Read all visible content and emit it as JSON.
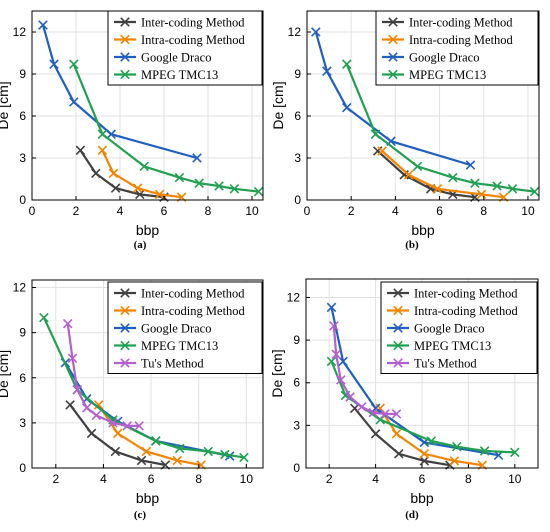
{
  "chart_data": [
    {
      "type": "line",
      "caption": "(a)",
      "xlabel": "bbp",
      "ylabel": "De [cm]",
      "xlim": [
        0,
        10.5
      ],
      "ylim": [
        0,
        13.5
      ],
      "xticks": [
        0,
        2,
        4,
        6,
        8,
        10
      ],
      "yticks": [
        0,
        3,
        6,
        9,
        12
      ],
      "grid": true,
      "legend": "top-right",
      "series": [
        {
          "name": "Inter-coding Method",
          "color": "#404040",
          "x": [
            2.2,
            2.9,
            3.8,
            4.9,
            6.0
          ],
          "y": [
            3.55,
            1.9,
            0.85,
            0.4,
            0.2
          ]
        },
        {
          "name": "Intra-coding Method",
          "color": "#f28500",
          "x": [
            3.2,
            3.7,
            4.8,
            5.8,
            6.8
          ],
          "y": [
            3.55,
            1.9,
            0.85,
            0.4,
            0.2
          ]
        },
        {
          "name": "Google Draco",
          "color": "#1f5fbf",
          "x": [
            0.5,
            1.0,
            1.9,
            3.6,
            7.5
          ],
          "y": [
            12.5,
            9.7,
            7.0,
            4.7,
            3.0
          ]
        },
        {
          "name": "MPEG TMC13",
          "color": "#20a050",
          "x": [
            1.9,
            3.2,
            5.1,
            6.7,
            7.6,
            8.5,
            9.2,
            10.3
          ],
          "y": [
            9.7,
            4.7,
            2.4,
            1.6,
            1.2,
            1.0,
            0.8,
            0.6
          ]
        }
      ]
    },
    {
      "type": "line",
      "caption": "(b)",
      "xlabel": "bbp",
      "ylabel": "De [cm]",
      "xlim": [
        0,
        10.5
      ],
      "ylim": [
        0,
        13.5
      ],
      "xticks": [
        0,
        2,
        4,
        6,
        8,
        10
      ],
      "yticks": [
        0,
        3,
        6,
        9,
        12
      ],
      "grid": true,
      "legend": "top-right",
      "series": [
        {
          "name": "Inter-coding Method",
          "color": "#404040",
          "x": [
            3.2,
            4.4,
            5.6,
            6.6,
            7.6
          ],
          "y": [
            3.5,
            1.8,
            0.8,
            0.4,
            0.2
          ]
        },
        {
          "name": "Intra-coding Method",
          "color": "#f28500",
          "x": [
            3.4,
            4.6,
            5.9,
            7.9,
            8.9
          ],
          "y": [
            3.5,
            1.8,
            0.8,
            0.4,
            0.2
          ]
        },
        {
          "name": "Google Draco",
          "color": "#1f5fbf",
          "x": [
            0.4,
            0.9,
            1.8,
            3.8,
            7.4
          ],
          "y": [
            12.0,
            9.2,
            6.6,
            4.2,
            2.5
          ]
        },
        {
          "name": "MPEG TMC13",
          "color": "#20a050",
          "x": [
            1.8,
            3.1,
            5.0,
            6.6,
            7.6,
            8.6,
            9.3,
            10.3
          ],
          "y": [
            9.7,
            4.7,
            2.4,
            1.6,
            1.2,
            1.0,
            0.8,
            0.6
          ]
        }
      ]
    },
    {
      "type": "line",
      "caption": "(c)",
      "xlabel": "bbp",
      "ylabel": "De [cm]",
      "xlim": [
        1,
        10.7
      ],
      "ylim": [
        0,
        12.5
      ],
      "xticks": [
        2,
        4,
        6,
        8,
        10
      ],
      "yticks": [
        0,
        3,
        6,
        9,
        12
      ],
      "grid": true,
      "legend": "top-right",
      "series": [
        {
          "name": "Inter-coding Method",
          "color": "#404040",
          "x": [
            2.6,
            3.5,
            4.5,
            5.6,
            6.6
          ],
          "y": [
            4.2,
            2.3,
            1.1,
            0.5,
            0.2
          ]
        },
        {
          "name": "Intra-coding Method",
          "color": "#f28500",
          "x": [
            3.8,
            4.6,
            5.8,
            7.1,
            8.1
          ],
          "y": [
            4.2,
            2.3,
            1.1,
            0.5,
            0.2
          ]
        },
        {
          "name": "Google Draco",
          "color": "#1f5fbf",
          "x": [
            2.4,
            3.3,
            4.6,
            6.2,
            9.3
          ],
          "y": [
            7.0,
            4.6,
            3.1,
            1.8,
            0.8
          ]
        },
        {
          "name": "MPEG TMC13",
          "color": "#20a050",
          "x": [
            1.5,
            2.9,
            4.4,
            6.2,
            7.2,
            8.4,
            9.1,
            9.9
          ],
          "y": [
            10.0,
            5.2,
            3.2,
            1.8,
            1.3,
            1.1,
            0.9,
            0.7
          ]
        },
        {
          "name": "Tu's Method",
          "color": "#b45fd1",
          "x": [
            2.5,
            2.7,
            2.9,
            3.3,
            3.7,
            4.4,
            5.0,
            5.5
          ],
          "y": [
            9.6,
            7.3,
            5.2,
            4.0,
            3.5,
            3.0,
            2.8,
            2.8
          ]
        }
      ]
    },
    {
      "type": "line",
      "caption": "(d)",
      "xlabel": "bbp",
      "ylabel": "De [cm]",
      "xlim": [
        1,
        11
      ],
      "ylim": [
        0,
        13.3
      ],
      "xticks": [
        2,
        4,
        6,
        8,
        10
      ],
      "yticks": [
        0,
        3,
        6,
        9,
        12
      ],
      "grid": true,
      "legend": "top-right",
      "series": [
        {
          "name": "Inter-coding Method",
          "color": "#404040",
          "x": [
            3.1,
            4.0,
            5.0,
            6.1,
            7.2
          ],
          "y": [
            4.2,
            2.4,
            1.0,
            0.5,
            0.2
          ]
        },
        {
          "name": "Intra-coding Method",
          "color": "#f28500",
          "x": [
            4.2,
            4.9,
            6.1,
            7.4,
            8.6
          ],
          "y": [
            4.2,
            2.4,
            1.0,
            0.5,
            0.2
          ]
        },
        {
          "name": "Google Draco",
          "color": "#1f5fbf",
          "x": [
            2.1,
            2.6,
            4.0,
            6.1,
            9.3
          ],
          "y": [
            11.3,
            7.5,
            4.2,
            1.8,
            0.9
          ]
        },
        {
          "name": "MPEG TMC13",
          "color": "#20a050",
          "x": [
            2.1,
            2.7,
            4.2,
            6.4,
            7.5,
            8.7,
            10.0
          ],
          "y": [
            7.5,
            5.1,
            3.4,
            1.9,
            1.5,
            1.2,
            1.1
          ]
        },
        {
          "name": "Tu's Method",
          "color": "#b45fd1",
          "x": [
            2.2,
            2.3,
            2.5,
            2.9,
            3.4,
            3.9,
            4.4,
            4.9
          ],
          "y": [
            10.0,
            8.0,
            6.2,
            5.0,
            4.3,
            3.9,
            3.8,
            3.8
          ]
        }
      ]
    }
  ]
}
